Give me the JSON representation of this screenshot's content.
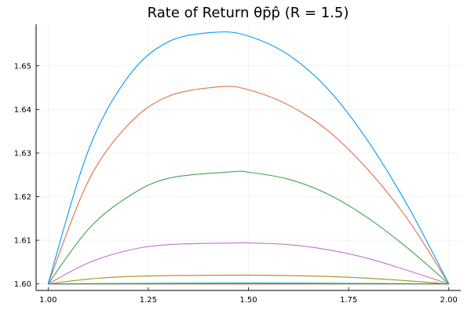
{
  "chart_data": {
    "type": "line",
    "title": "Rate of Return θp̄p̂ (R = 1.5)",
    "xlabel": "",
    "ylabel": "",
    "xlim": [
      0.97,
      2.03
    ],
    "ylim": [
      1.5985,
      1.6595
    ],
    "xticks": [
      1.0,
      1.25,
      1.5,
      1.75,
      2.0
    ],
    "xtick_labels": [
      "1.00",
      "1.25",
      "1.50",
      "1.75",
      "2.00"
    ],
    "yticks": [
      1.6,
      1.61,
      1.62,
      1.63,
      1.64,
      1.65
    ],
    "ytick_labels": [
      "1.60",
      "1.61",
      "1.62",
      "1.63",
      "1.64",
      "1.65"
    ],
    "grid": true,
    "legend": "none",
    "series": [
      {
        "color": "#009AFA",
        "peak_x": 1.42,
        "peak_y": 1.6577,
        "x": [
          1.0,
          1.1,
          1.2,
          1.3,
          1.42,
          1.5,
          1.6,
          1.7,
          1.8,
          1.9,
          2.0
        ],
        "y": [
          1.6,
          1.6305,
          1.6475,
          1.6555,
          1.6577,
          1.6568,
          1.6525,
          1.6445,
          1.6325,
          1.6175,
          1.6
        ]
      },
      {
        "color": "#E36F47",
        "peak_x": 1.43,
        "peak_y": 1.6452,
        "x": [
          1.0,
          1.1,
          1.2,
          1.3,
          1.43,
          1.5,
          1.6,
          1.7,
          1.8,
          1.9,
          2.0
        ],
        "y": [
          1.6,
          1.6235,
          1.6365,
          1.643,
          1.6452,
          1.6445,
          1.641,
          1.635,
          1.626,
          1.6145,
          1.6
        ]
      },
      {
        "color": "#3EA44E",
        "peak_x": 1.46,
        "peak_y": 1.6257,
        "x": [
          1.0,
          1.1,
          1.2,
          1.3,
          1.46,
          1.5,
          1.6,
          1.7,
          1.8,
          1.9,
          2.0
        ],
        "y": [
          1.6,
          1.6125,
          1.62,
          1.6242,
          1.6257,
          1.6256,
          1.624,
          1.6205,
          1.615,
          1.608,
          1.6
        ]
      },
      {
        "color": "#C271D2",
        "peak_x": 1.47,
        "peak_y": 1.6094,
        "x": [
          1.0,
          1.1,
          1.2,
          1.3,
          1.47,
          1.5,
          1.6,
          1.7,
          1.8,
          1.9,
          2.0
        ],
        "y": [
          1.6,
          1.6048,
          1.6077,
          1.609,
          1.6094,
          1.6094,
          1.609,
          1.6078,
          1.6058,
          1.603,
          1.6
        ]
      },
      {
        "color": "#AC8D18",
        "peak_x": 1.47,
        "peak_y": 1.602,
        "x": [
          1.0,
          1.1,
          1.2,
          1.3,
          1.47,
          1.5,
          1.6,
          1.7,
          1.8,
          1.9,
          2.0
        ],
        "y": [
          1.6,
          1.6011,
          1.6017,
          1.6019,
          1.602,
          1.602,
          1.6019,
          1.6017,
          1.6013,
          1.6007,
          1.6
        ]
      },
      {
        "color": "#00A9AD",
        "peak_x": 1.5,
        "peak_y": 1.6002,
        "x": [
          1.0,
          1.5,
          2.0
        ],
        "y": [
          1.6,
          1.6002,
          1.6
        ]
      },
      {
        "color": "#ED5E93",
        "peak_x": 1.5,
        "peak_y": 1.6001,
        "x": [
          1.0,
          1.5,
          2.0
        ],
        "y": [
          1.6,
          1.6001,
          1.6
        ]
      },
      {
        "color": "#C68225",
        "peak_x": 1.5,
        "peak_y": 1.6,
        "x": [
          1.0,
          1.5,
          2.0
        ],
        "y": [
          1.6,
          1.6,
          1.6
        ]
      },
      {
        "color": "#888888",
        "peak_x": 1.5,
        "peak_y": 1.6,
        "x": [
          1.0,
          1.5,
          2.0
        ],
        "y": [
          1.6,
          1.6,
          1.6
        ]
      }
    ]
  }
}
